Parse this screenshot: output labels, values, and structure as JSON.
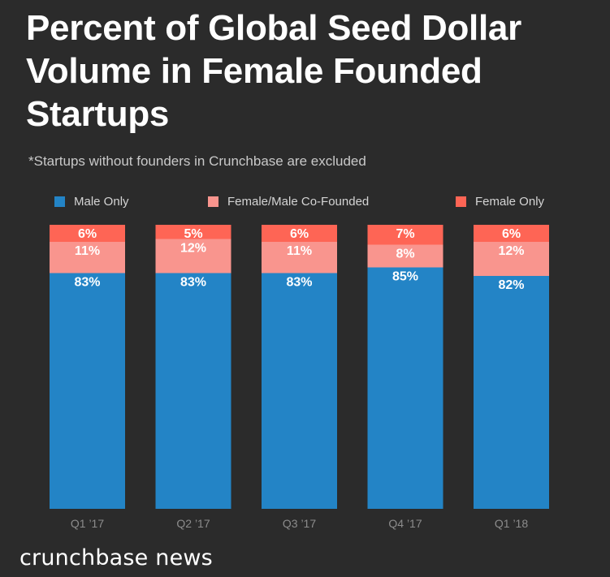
{
  "chart_data": {
    "type": "bar",
    "stacked": true,
    "title": "Percent of Global Seed Dollar Volume in Female Founded Startups",
    "subtitle": "*Startups without founders in Crunchbase are excluded",
    "categories": [
      "Q1 ’17",
      "Q2 ’17",
      "Q3 ’17",
      "Q4 ’17",
      "Q1 ’18"
    ],
    "series": [
      {
        "name": "Male Only",
        "color": "#2384c6",
        "values": [
          83,
          83,
          83,
          85,
          82
        ]
      },
      {
        "name": "Female/Male Co-Founded",
        "color": "#f9958e",
        "values": [
          11,
          12,
          11,
          8,
          12
        ]
      },
      {
        "name": "Female Only",
        "color": "#fe6555",
        "values": [
          6,
          5,
          6,
          7,
          6
        ]
      }
    ],
    "value_suffix": "%",
    "ylim": [
      0,
      100
    ],
    "xlabel": "",
    "ylabel": "",
    "legend_position": "top"
  },
  "brand": "crunchbase news"
}
